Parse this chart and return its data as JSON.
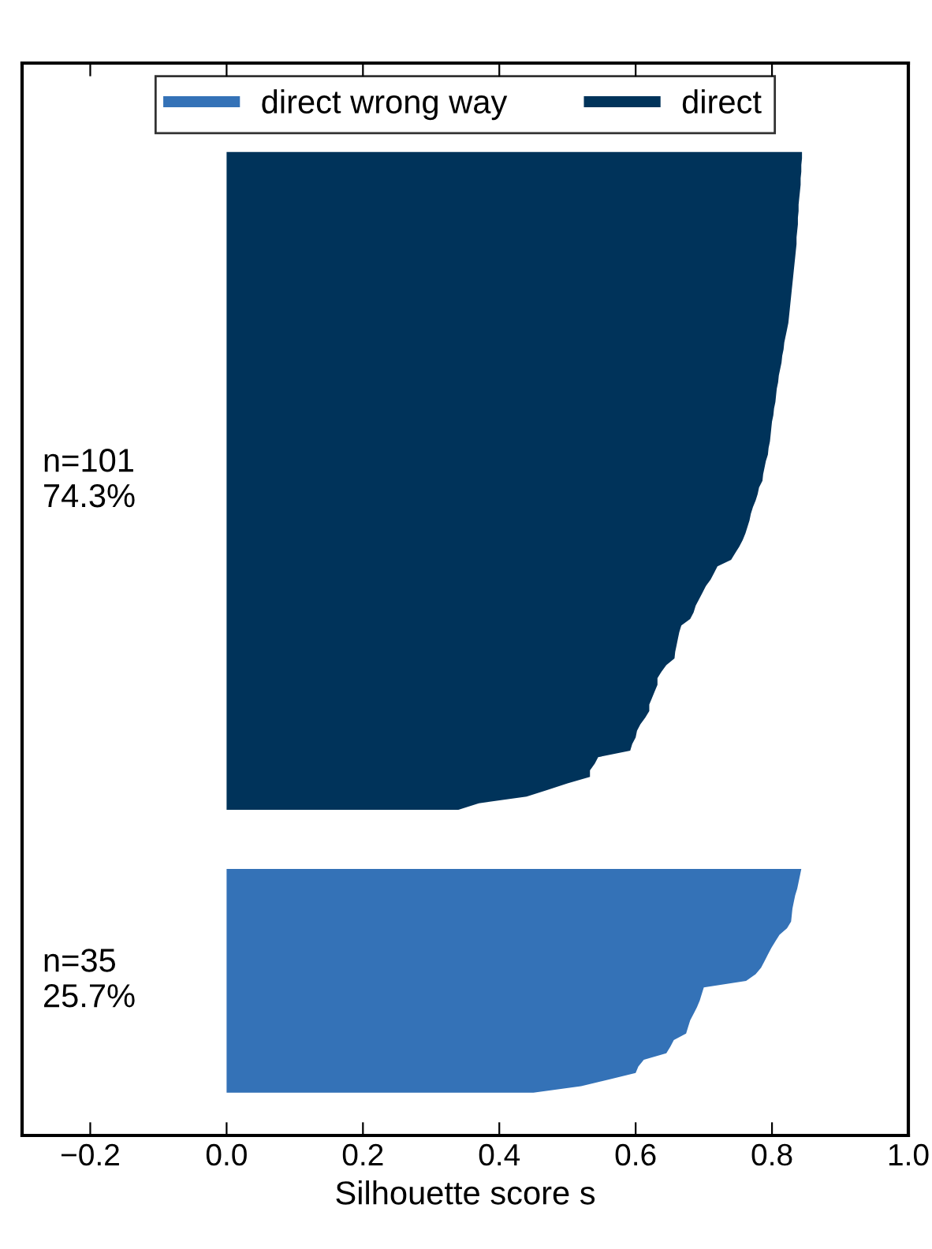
{
  "chart_data": {
    "type": "area",
    "orientation": "horizontal",
    "legend": "top",
    "tick_labels": "x",
    "grid": false,
    "xlabel": "Silhouette score s",
    "xlim": [
      -0.3,
      1.0
    ],
    "xticks": [
      {
        "value": -0.2,
        "label": "−0.2"
      },
      {
        "value": 0.0,
        "label": "0.0"
      },
      {
        "value": 0.2,
        "label": "0.2"
      },
      {
        "value": 0.4,
        "label": "0.4"
      },
      {
        "value": 0.6,
        "label": "0.6"
      },
      {
        "value": 0.8,
        "label": "0.8"
      },
      {
        "value": 1.0,
        "label": "1.0"
      }
    ],
    "categories": [
      null,
      null,
      null,
      null,
      null,
      null,
      null,
      null,
      null,
      null,
      null,
      null,
      null,
      null,
      null,
      null,
      null,
      null,
      null,
      null,
      null,
      null,
      null,
      null,
      null,
      null,
      null,
      null,
      null,
      null,
      null,
      null,
      null,
      null,
      null,
      null,
      null,
      null,
      null,
      null,
      null,
      null,
      null,
      null,
      null,
      null,
      null,
      null,
      null,
      null,
      null,
      null,
      null,
      null,
      null,
      null,
      null,
      null,
      null,
      null,
      null,
      null,
      null,
      null,
      null,
      null,
      null,
      null,
      null,
      null,
      null,
      null,
      null,
      null,
      null,
      null,
      null,
      null,
      null,
      null,
      null,
      null,
      null,
      null,
      null,
      null,
      null,
      null,
      null,
      null,
      null,
      null,
      null,
      null,
      null,
      null,
      null,
      null,
      null,
      null,
      null,
      null,
      null,
      null,
      null,
      null,
      null,
      null,
      null,
      null,
      null,
      null,
      null,
      null,
      null,
      null,
      null,
      null,
      null,
      null,
      null,
      null,
      null,
      null,
      null,
      null,
      null,
      null,
      null,
      null,
      null,
      null,
      null,
      null,
      null,
      null,
      null,
      null,
      null,
      null,
      null,
      null,
      null,
      null,
      null,
      null,
      null,
      null,
      null,
      null,
      null,
      null,
      null,
      null,
      null,
      null,
      null,
      null,
      null,
      null,
      null,
      null,
      null
    ],
    "series": [
      {
        "name": "direct",
        "color": "#00335a",
        "values": [
          null,
          null,
          null,
          null,
          null,
          null,
          null,
          null,
          null,
          null,
          null,
          null,
          null,
          0.844,
          0.844,
          0.843,
          0.843,
          0.842,
          0.842,
          0.841,
          0.84,
          0.839,
          0.839,
          0.838,
          0.838,
          0.837,
          0.836,
          0.836,
          0.835,
          0.834,
          0.833,
          0.832,
          0.831,
          0.83,
          0.829,
          0.828,
          0.827,
          0.826,
          0.825,
          0.824,
          0.822,
          0.82,
          0.818,
          0.817,
          0.815,
          0.814,
          0.812,
          0.81,
          0.809,
          0.807,
          0.806,
          0.805,
          0.803,
          0.802,
          0.8,
          0.799,
          0.798,
          0.797,
          0.795,
          0.794,
          0.791,
          0.789,
          0.787,
          0.786,
          0.781,
          0.779,
          0.776,
          0.772,
          0.769,
          0.767,
          0.764,
          0.761,
          0.757,
          0.752,
          0.746,
          0.74,
          0.72,
          0.715,
          0.71,
          0.703,
          0.698,
          0.693,
          0.688,
          0.685,
          0.68,
          0.667,
          0.664,
          0.662,
          0.66,
          0.658,
          0.657,
          0.645,
          0.638,
          0.632,
          0.632,
          0.628,
          0.624,
          0.62,
          0.62,
          0.614,
          0.607,
          0.602,
          0.6,
          0.595,
          0.592,
          0.545,
          0.54,
          0.533,
          0.533,
          0.5,
          0.47,
          0.44,
          0.37,
          0.34,
          null,
          null,
          null,
          null,
          null,
          null,
          null,
          null,
          null,
          null,
          null,
          null,
          null,
          null,
          null,
          null,
          null,
          null,
          null,
          null,
          null,
          null,
          null,
          null,
          null,
          null,
          null,
          null,
          null,
          null,
          null,
          null,
          null,
          null,
          null,
          null,
          null,
          null,
          null,
          null,
          null,
          null,
          null,
          null,
          null,
          null,
          null,
          null,
          null
        ]
      },
      {
        "name": "direct wrong way",
        "color": "#3472b7",
        "values": [
          null,
          null,
          null,
          null,
          null,
          null,
          null,
          null,
          null,
          null,
          null,
          null,
          null,
          null,
          null,
          null,
          null,
          null,
          null,
          null,
          null,
          null,
          null,
          null,
          null,
          null,
          null,
          null,
          null,
          null,
          null,
          null,
          null,
          null,
          null,
          null,
          null,
          null,
          null,
          null,
          null,
          null,
          null,
          null,
          null,
          null,
          null,
          null,
          null,
          null,
          null,
          null,
          null,
          null,
          null,
          null,
          null,
          null,
          null,
          null,
          null,
          null,
          null,
          null,
          null,
          null,
          null,
          null,
          null,
          null,
          null,
          null,
          null,
          null,
          null,
          null,
          null,
          null,
          null,
          null,
          null,
          null,
          null,
          null,
          null,
          null,
          null,
          null,
          null,
          null,
          null,
          null,
          null,
          null,
          null,
          null,
          null,
          null,
          null,
          null,
          null,
          null,
          null,
          null,
          null,
          null,
          null,
          null,
          null,
          null,
          null,
          null,
          null,
          null,
          null,
          null,
          null,
          null,
          null,
          null,
          null,
          null,
          0.843,
          0.841,
          0.839,
          0.837,
          0.834,
          0.832,
          0.83,
          0.829,
          0.828,
          0.822,
          0.811,
          0.805,
          0.799,
          0.794,
          0.789,
          0.784,
          0.776,
          0.762,
          0.7,
          0.697,
          0.694,
          0.69,
          0.685,
          0.68,
          0.677,
          0.674,
          0.656,
          0.651,
          0.645,
          0.612,
          0.604,
          0.6,
          0.561,
          0.52,
          0.45,
          null,
          null,
          null,
          null,
          null,
          null
        ]
      }
    ],
    "annotations": [
      "n=101\n74.3%",
      "n=35\n25.7%"
    ]
  }
}
